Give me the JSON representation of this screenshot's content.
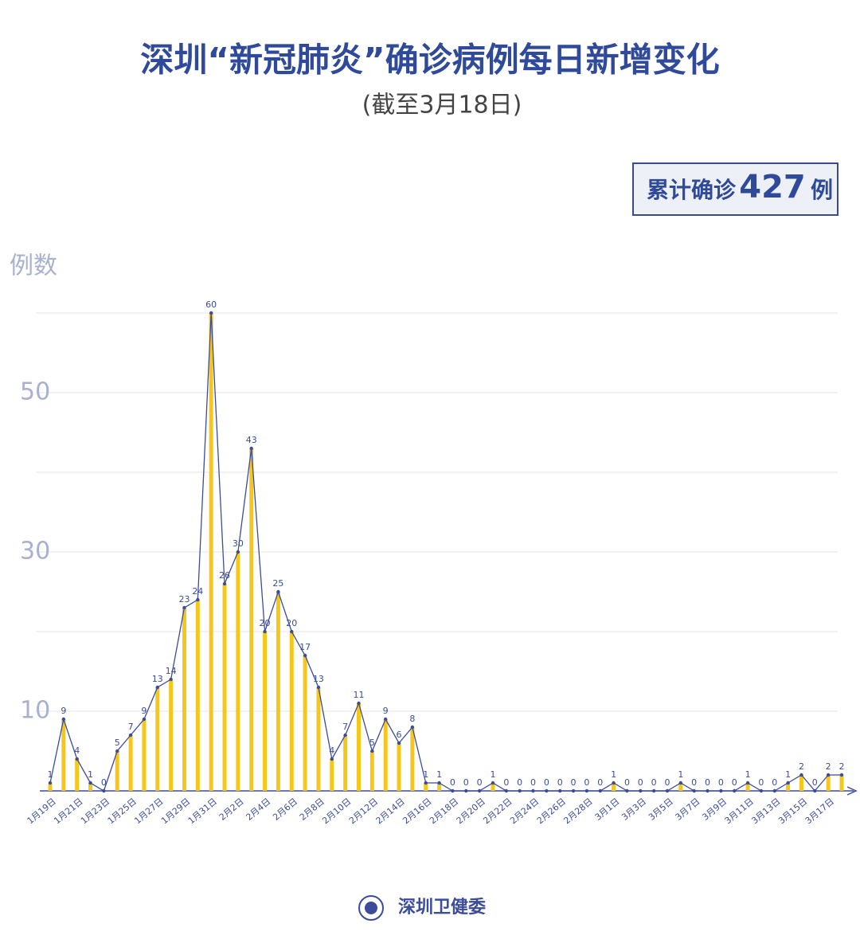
{
  "chart_data": {
    "type": "bar",
    "title": "深圳“新冠肺炎”确诊病例每日新增变化",
    "subtitle": "(截至3月18日)",
    "total_box": {
      "prefix": "累计确诊",
      "value": 427,
      "suffix": "例"
    },
    "y_label": "例数",
    "source": "深圳卫健委",
    "categories": [
      "1月19日",
      null,
      "1月21日",
      null,
      "1月23日",
      null,
      "1月25日",
      null,
      "1月27日",
      null,
      "1月29日",
      null,
      "1月31日",
      null,
      "2月2日",
      null,
      "2月4日",
      null,
      "2月6日",
      null,
      "2月8日",
      null,
      "2月10日",
      null,
      "2月12日",
      null,
      "2月14日",
      null,
      "2月16日",
      null,
      "2月18日",
      null,
      "2月20日",
      null,
      "2月22日",
      null,
      "2月24日",
      null,
      "2月26日",
      null,
      "2月28日",
      null,
      "3月1日",
      null,
      "3月3日",
      null,
      "3月5日",
      null,
      "3月7日",
      null,
      "3月9日",
      null,
      "3月11日",
      null,
      "3月13日",
      null,
      "3月15日",
      null,
      "3月17日",
      null
    ],
    "values": [
      1,
      9,
      4,
      1,
      0,
      5,
      7,
      9,
      13,
      14,
      23,
      24,
      60,
      26,
      30,
      43,
      20,
      25,
      20,
      17,
      13,
      4,
      7,
      11,
      5,
      9,
      6,
      8,
      1,
      1,
      0,
      0,
      0,
      1,
      0,
      0,
      0,
      0,
      0,
      0,
      0,
      0,
      1,
      0,
      0,
      0,
      0,
      1,
      0,
      0,
      0,
      0,
      1,
      0,
      0,
      1,
      2,
      0,
      2,
      2
    ],
    "color": "#f5c71a",
    "line_color": "#3b4c9b",
    "ylim": [
      0,
      60
    ],
    "yticks": [
      10,
      30,
      50
    ],
    "ygrid": [
      10,
      20,
      30,
      40,
      50,
      60
    ],
    "grid": true
  }
}
